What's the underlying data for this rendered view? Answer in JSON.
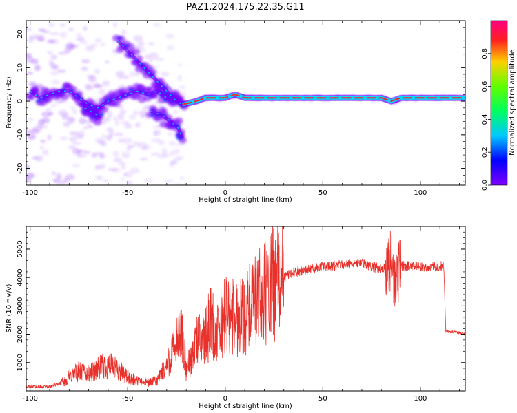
{
  "figure": {
    "title": "PAZ1.2024.175.22.35.G11"
  },
  "chart_data": [
    {
      "type": "heatmap",
      "xlabel": "Height of straight line (km)",
      "ylabel": "Frequency (Hz)",
      "xlim": [
        -102,
        123
      ],
      "ylim": [
        -25,
        24
      ],
      "xticks": [
        -100,
        -50,
        0,
        50,
        100
      ],
      "yticks": [
        -20,
        -10,
        0,
        10,
        20
      ],
      "ridges": [
        {
          "x": [
            -100,
            -95,
            -90,
            -85,
            -80,
            -75,
            -70,
            -65,
            -60,
            -55,
            -50,
            -45,
            -40,
            -35,
            -30,
            -25
          ],
          "y": [
            3,
            1,
            2,
            3,
            3,
            1,
            -1,
            -2,
            0,
            1,
            2,
            3,
            2,
            3,
            1,
            1
          ]
        },
        {
          "x": [
            -72,
            -69,
            -66,
            -64
          ],
          "y": [
            -2,
            -3,
            -4,
            -5
          ]
        },
        {
          "x": [
            -55,
            -50,
            -45,
            -40,
            -35,
            -30,
            -25,
            -22
          ],
          "y": [
            18,
            15,
            12,
            9,
            6,
            3,
            0,
            -1
          ]
        },
        {
          "x": [
            -38,
            -33,
            -28,
            -24,
            -22
          ],
          "y": [
            -3,
            -4,
            -6,
            -8,
            -11
          ]
        },
        {
          "x": [
            -22,
            -15,
            -10,
            -5,
            0,
            5,
            10,
            15,
            20,
            30,
            40,
            50,
            60,
            70,
            80,
            85,
            90,
            100,
            110,
            123
          ],
          "y": [
            -1,
            0,
            1,
            1,
            1,
            2,
            1,
            1,
            1,
            1,
            1,
            1,
            1,
            1,
            1,
            0,
            1,
            1,
            1,
            1
          ]
        }
      ],
      "colorbar": {
        "label": "Normalized spectral amplitude",
        "range": [
          0,
          1
        ],
        "ticks": [
          0.0,
          0.2,
          0.4,
          0.6,
          0.8
        ],
        "tick_labels": [
          "0.0",
          "0.2",
          "0.4",
          "0.6",
          "0.8"
        ],
        "colormap": "gist_rainbow"
      }
    },
    {
      "type": "line",
      "xlabel": "Height of straight line (km)",
      "ylabel": "SNR (10 * v/v)",
      "xlim": [
        -102,
        123
      ],
      "ylim": [
        0,
        5800
      ],
      "xticks": [
        -100,
        -50,
        0,
        50,
        100
      ],
      "yticks": [
        1000,
        2000,
        3000,
        4000,
        5000
      ],
      "color": "#e8312b",
      "series": [
        {
          "x": [
            -102,
            -95,
            -90,
            -85,
            -82,
            -80,
            -75,
            -70,
            -65,
            -60,
            -55,
            -50,
            -45,
            -40,
            -35,
            -30,
            -25,
            -22,
            -20,
            -15,
            -10,
            -7,
            -5,
            0,
            5,
            10,
            15,
            20,
            25,
            30,
            35,
            40,
            45,
            50,
            55,
            60,
            65,
            70,
            75,
            80,
            85,
            87,
            90,
            95,
            100,
            105,
            110,
            112,
            113,
            115,
            120,
            123
          ],
          "y": [
            150,
            150,
            160,
            250,
            350,
            500,
            700,
            600,
            800,
            900,
            750,
            500,
            350,
            300,
            350,
            900,
            1700,
            2000,
            700,
            1700,
            1900,
            2600,
            1800,
            2700,
            2600,
            2700,
            3100,
            3400,
            3800,
            4000,
            4200,
            4250,
            4300,
            4400,
            4400,
            4450,
            4500,
            4500,
            4400,
            4300,
            4600,
            3800,
            4400,
            4400,
            4400,
            4350,
            4400,
            4400,
            2100,
            2100,
            2050,
            2000
          ]
        }
      ]
    }
  ]
}
